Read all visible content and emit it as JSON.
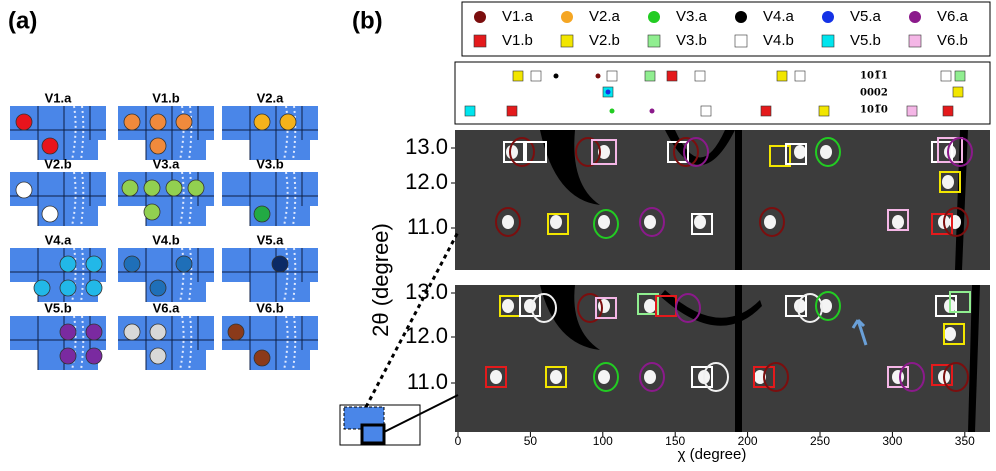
{
  "panel_a": {
    "label": "(a)",
    "tiles": [
      {
        "label": "V1.a",
        "color": "#e8141c"
      },
      {
        "label": "V1.b",
        "color": "#f08a3c"
      },
      {
        "label": "V2.a",
        "color": "#f5b21b"
      },
      {
        "label": "V2.b",
        "color": "#ffffff"
      },
      {
        "label": "V3.a",
        "color": "#92d050"
      },
      {
        "label": "V3.b",
        "color": "#22aa44"
      },
      {
        "label": "V4.a",
        "color": "#22b8e8"
      },
      {
        "label": "V4.b",
        "color": "#1f6fb8"
      },
      {
        "label": "V5.a",
        "color": "#0b2a66"
      },
      {
        "label": "V5.b",
        "color": "#7a2aa0"
      },
      {
        "label": "V6.a",
        "color": "#d8d8d8"
      },
      {
        "label": "V6.b",
        "color": "#8b3a1a"
      }
    ]
  },
  "panel_b": {
    "label": "(b)",
    "legend": [
      {
        "label": "V1.a",
        "color": "#7b0e0e",
        "shape": "circle"
      },
      {
        "label": "V2.a",
        "color": "#f5a623",
        "shape": "circle"
      },
      {
        "label": "V3.a",
        "color": "#22cc22",
        "shape": "circle"
      },
      {
        "label": "V4.a",
        "color": "#000000",
        "shape": "circle"
      },
      {
        "label": "V5.a",
        "color": "#1432e6",
        "shape": "circle"
      },
      {
        "label": "V6.a",
        "color": "#8b1a8b",
        "shape": "circle"
      },
      {
        "label": "V1.b",
        "color": "#e41a1c",
        "shape": "square"
      },
      {
        "label": "V2.b",
        "color": "#f2e600",
        "shape": "square"
      },
      {
        "label": "V3.b",
        "color": "#90ee90",
        "shape": "square"
      },
      {
        "label": "V4.b",
        "color": "#ffffff",
        "shape": "square"
      },
      {
        "label": "V5.b",
        "color": "#00e5ee",
        "shape": "square"
      },
      {
        "label": "V6.b",
        "color": "#f4b6e6",
        "shape": "square"
      }
    ],
    "planes": [
      "101̅1",
      "0002",
      "101̅0"
    ],
    "y_axis_label": "2θ (degree)",
    "x_axis_label": "χ (degree)",
    "upper_yticks": [
      "13.0",
      "12.0",
      "11.0"
    ],
    "lower_yticks": [
      "13.0",
      "12.0",
      "11.0"
    ],
    "xticks": [
      "0",
      "50",
      "100",
      "150",
      "200",
      "250",
      "300",
      "350"
    ]
  }
}
